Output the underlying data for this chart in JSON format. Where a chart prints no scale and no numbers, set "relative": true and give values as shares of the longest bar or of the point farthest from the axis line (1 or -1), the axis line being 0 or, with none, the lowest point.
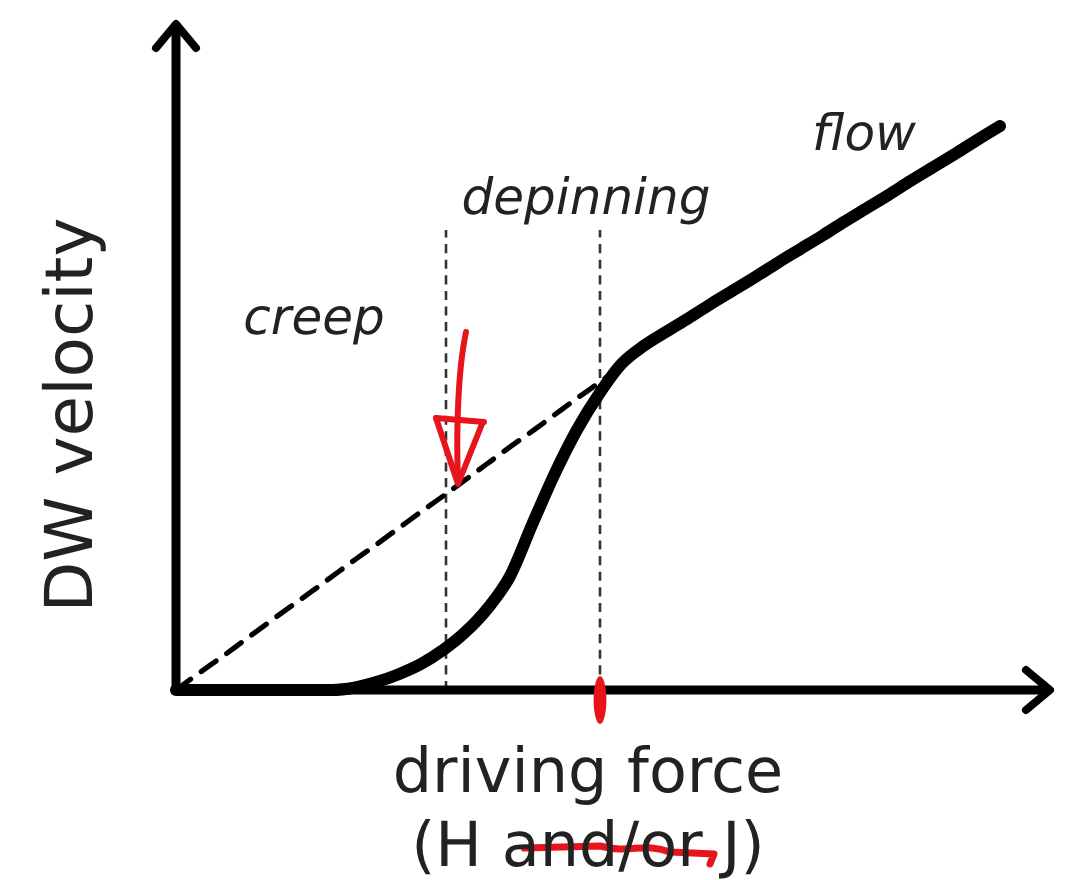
{
  "chart_data": {
    "type": "line",
    "relative": true,
    "xlabel": "driving force\n(H and/or J)",
    "ylabel": "DW velocity",
    "categories": [
      null,
      null,
      null,
      null,
      null,
      null,
      null,
      null,
      null,
      null,
      null,
      null,
      null,
      null,
      null,
      null,
      null,
      null,
      null,
      null,
      null,
      null,
      null,
      null,
      null,
      null,
      null,
      null,
      null,
      null,
      null,
      null,
      null,
      null,
      null,
      null,
      null,
      null
    ],
    "series": [
      {
        "color": "#000000",
        "values": [
          0,
          0,
          0,
          0,
          0,
          0,
          0,
          0,
          0.004,
          0.014,
          0.028,
          0.046,
          0.071,
          0.103,
          0.145,
          0.202,
          0.294,
          0.383,
          0.461,
          0.525,
          0.578,
          0.61,
          0.635,
          0.659,
          0.684,
          0.708,
          0.732,
          0.757,
          0.781,
          0.805,
          0.83,
          0.854,
          0.878,
          0.903,
          0.927,
          0.951,
          0.976,
          1
        ]
      },
      {
        "color": "#000000",
        "line_style": "dashed",
        "values": [
          0,
          0.029,
          0.057,
          0.086,
          0.115,
          0.144,
          0.172,
          0.201,
          0.23,
          0.258,
          0.287,
          0.316,
          0.344,
          0.373,
          0.402,
          0.431,
          0.459,
          0.488,
          0.517,
          0.545,
          0.574,
          null,
          null,
          null,
          null,
          null,
          null,
          null,
          null,
          null,
          null,
          null,
          null,
          null,
          null,
          null,
          null,
          null
        ]
      }
    ],
    "annotations": [
      "creep",
      "depinning",
      "flow"
    ]
  }
}
